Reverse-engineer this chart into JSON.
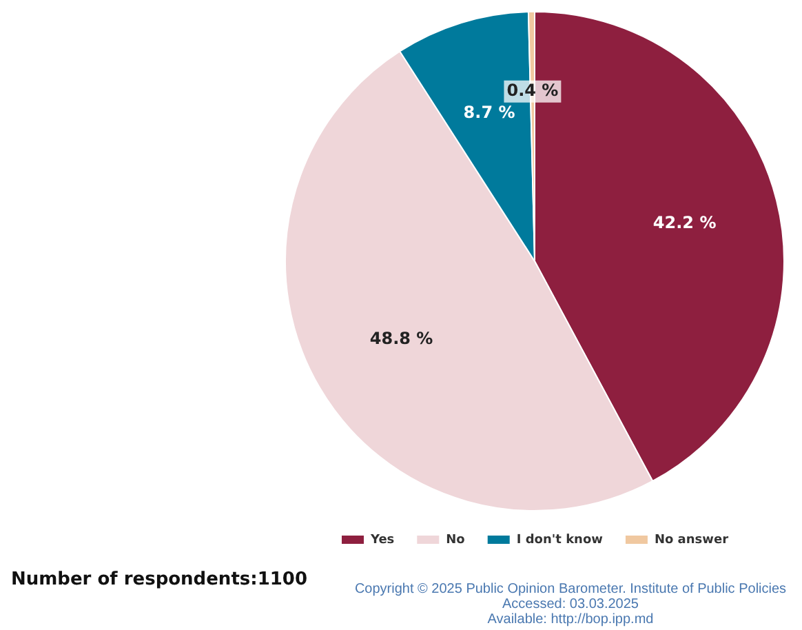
{
  "chart_data": {
    "type": "pie",
    "categories": [
      "Yes",
      "No",
      "I don't know",
      "No answer"
    ],
    "values": [
      42.2,
      48.8,
      8.7,
      0.4
    ],
    "colors": [
      "#8e1f3f",
      "#efd6d9",
      "#007a9c",
      "#f0c8a0"
    ],
    "value_labels": [
      "42.2 %",
      "48.8 %",
      "8.7 %",
      "0.4 %"
    ],
    "legend": "bottom",
    "annotations": [
      "Number of respondents:1100",
      "Copyright © 2025 Public Opinion Barometer. Institute of Public Policies",
      "Accessed: 03.03.2025",
      "Available: http://bop.ipp.md"
    ]
  }
}
